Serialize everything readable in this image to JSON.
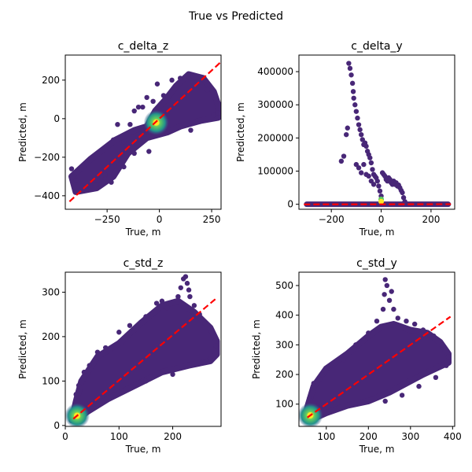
{
  "figure": {
    "suptitle": "True vs Predicted"
  },
  "colors": {
    "point": "#482777",
    "point_dense": "#3b528b",
    "core_inner": "#fde725",
    "core_mid": "#5ec962",
    "core_outer": "#21918c",
    "ideal_line": "#ff0000",
    "axis": "#000000"
  },
  "chart_data": [
    {
      "id": "c_delta_z",
      "type": "scatter",
      "title": "c_delta_z",
      "xlabel": "True, m",
      "ylabel": "Predicted, m",
      "xlim": [
        -450,
        295
      ],
      "ylim": [
        -470,
        330
      ],
      "xticks": [
        -250,
        0,
        250
      ],
      "yticks": [
        -400,
        -200,
        0,
        200
      ],
      "ideal_line": {
        "from": [
          -430,
          -430
        ],
        "to": [
          290,
          290
        ],
        "style": "dashed"
      },
      "density_peak": [
        -15,
        -20
      ],
      "cloud_polygon": [
        [
          -420,
          -300
        ],
        [
          -330,
          -210
        ],
        [
          -210,
          -110
        ],
        [
          -120,
          -60
        ],
        [
          -60,
          -40
        ],
        [
          -20,
          40
        ],
        [
          30,
          100
        ],
        [
          80,
          170
        ],
        [
          140,
          230
        ],
        [
          210,
          210
        ],
        [
          260,
          140
        ],
        [
          285,
          60
        ],
        [
          280,
          5
        ],
        [
          200,
          -10
        ],
        [
          100,
          -40
        ],
        [
          40,
          -70
        ],
        [
          -60,
          -100
        ],
        [
          -150,
          -180
        ],
        [
          -220,
          -300
        ],
        [
          -300,
          -360
        ],
        [
          -400,
          -380
        ]
      ],
      "points": [
        [
          -420,
          -260
        ],
        [
          -400,
          -320
        ],
        [
          -330,
          -350
        ],
        [
          -300,
          -340
        ],
        [
          -280,
          -300
        ],
        [
          -260,
          -290
        ],
        [
          -230,
          -330
        ],
        [
          -220,
          -110
        ],
        [
          -200,
          -30
        ],
        [
          -170,
          -120
        ],
        [
          -140,
          -30
        ],
        [
          -120,
          40
        ],
        [
          -100,
          60
        ],
        [
          -80,
          60
        ],
        [
          -60,
          110
        ],
        [
          -50,
          -170
        ],
        [
          -30,
          90
        ],
        [
          -10,
          180
        ],
        [
          20,
          120
        ],
        [
          60,
          200
        ],
        [
          100,
          210
        ],
        [
          140,
          220
        ],
        [
          180,
          190
        ],
        [
          230,
          150
        ],
        [
          270,
          100
        ],
        [
          280,
          30
        ],
        [
          260,
          20
        ],
        [
          150,
          -60
        ],
        [
          -120,
          -180
        ],
        [
          -170,
          -250
        ]
      ]
    },
    {
      "id": "c_delta_y",
      "type": "scatter",
      "title": "c_delta_y",
      "xlabel": "True, m",
      "ylabel": "Predicted, m",
      "xlim": [
        -330,
        295
      ],
      "ylim": [
        -15000,
        450000
      ],
      "xticks": [
        -200,
        0,
        200
      ],
      "yticks": [
        0,
        100000,
        200000,
        300000,
        400000
      ],
      "ideal_line": {
        "from": [
          -310,
          -310
        ],
        "to": [
          280,
          280
        ],
        "style": "dashed"
      },
      "baseline_range": [
        -310,
        280
      ],
      "highlight_points": [
        [
          0,
          15000
        ],
        [
          0,
          8000
        ]
      ],
      "points": [
        [
          -130,
          425000
        ],
        [
          -125,
          410000
        ],
        [
          -120,
          390000
        ],
        [
          -115,
          365000
        ],
        [
          -112,
          340000
        ],
        [
          -110,
          320000
        ],
        [
          -105,
          300000
        ],
        [
          -100,
          280000
        ],
        [
          -95,
          260000
        ],
        [
          -90,
          240000
        ],
        [
          -85,
          225000
        ],
        [
          -80,
          210000
        ],
        [
          -75,
          195000
        ],
        [
          -70,
          180000
        ],
        [
          -65,
          185000
        ],
        [
          -60,
          175000
        ],
        [
          -55,
          160000
        ],
        [
          -50,
          150000
        ],
        [
          -45,
          140000
        ],
        [
          -40,
          125000
        ],
        [
          -35,
          105000
        ],
        [
          -30,
          90000
        ],
        [
          -25,
          85000
        ],
        [
          -20,
          80000
        ],
        [
          -15,
          70000
        ],
        [
          -10,
          55000
        ],
        [
          -5,
          40000
        ],
        [
          0,
          25000
        ],
        [
          5,
          95000
        ],
        [
          10,
          90000
        ],
        [
          15,
          85000
        ],
        [
          20,
          75000
        ],
        [
          25,
          70000
        ],
        [
          30,
          80000
        ],
        [
          35,
          75000
        ],
        [
          40,
          65000
        ],
        [
          45,
          60000
        ],
        [
          50,
          70000
        ],
        [
          55,
          60000
        ],
        [
          60,
          65000
        ],
        [
          65,
          55000
        ],
        [
          70,
          58000
        ],
        [
          75,
          50000
        ],
        [
          80,
          42000
        ],
        [
          85,
          35000
        ],
        [
          90,
          20000
        ],
        [
          95,
          8000
        ],
        [
          -160,
          130000
        ],
        [
          -150,
          145000
        ],
        [
          -140,
          210000
        ],
        [
          -135,
          230000
        ],
        [
          -100,
          120000
        ],
        [
          -90,
          110000
        ],
        [
          -80,
          95000
        ],
        [
          -70,
          120000
        ],
        [
          -60,
          90000
        ],
        [
          -50,
          85000
        ],
        [
          -40,
          70000
        ],
        [
          -30,
          60000
        ]
      ]
    },
    {
      "id": "c_std_z",
      "type": "scatter",
      "title": "c_std_z",
      "xlabel": "True, m",
      "ylabel": "Predicted, m",
      "xlim": [
        0,
        290
      ],
      "ylim": [
        -2,
        345
      ],
      "xticks": [
        0,
        100,
        200
      ],
      "yticks": [
        0,
        100,
        200,
        300
      ],
      "ideal_line": {
        "from": [
          15,
          15
        ],
        "to": [
          280,
          285
        ],
        "style": "dashed"
      },
      "density_peak": [
        22,
        22
      ],
      "cloud_polygon": [
        [
          12,
          12
        ],
        [
          20,
          55
        ],
        [
          30,
          100
        ],
        [
          60,
          155
        ],
        [
          100,
          185
        ],
        [
          140,
          230
        ],
        [
          180,
          270
        ],
        [
          210,
          280
        ],
        [
          240,
          255
        ],
        [
          270,
          220
        ],
        [
          282,
          190
        ],
        [
          282,
          160
        ],
        [
          270,
          145
        ],
        [
          230,
          135
        ],
        [
          180,
          120
        ],
        [
          130,
          90
        ],
        [
          80,
          60
        ],
        [
          40,
          30
        ],
        [
          20,
          10
        ]
      ],
      "points": [
        [
          20,
          70
        ],
        [
          25,
          90
        ],
        [
          35,
          120
        ],
        [
          45,
          135
        ],
        [
          60,
          165
        ],
        [
          75,
          175
        ],
        [
          100,
          210
        ],
        [
          120,
          225
        ],
        [
          150,
          245
        ],
        [
          170,
          275
        ],
        [
          180,
          280
        ],
        [
          190,
          265
        ],
        [
          210,
          290
        ],
        [
          215,
          310
        ],
        [
          220,
          330
        ],
        [
          224,
          335
        ],
        [
          227,
          320
        ],
        [
          230,
          305
        ],
        [
          232,
          290
        ],
        [
          240,
          270
        ],
        [
          250,
          250
        ],
        [
          260,
          230
        ],
        [
          275,
          200
        ],
        [
          280,
          180
        ],
        [
          270,
          150
        ],
        [
          200,
          115
        ],
        [
          150,
          100
        ]
      ]
    },
    {
      "id": "c_std_y",
      "type": "scatter",
      "title": "c_std_y",
      "xlabel": "True, m",
      "ylabel": "Predicted, m",
      "xlim": [
        35,
        405
      ],
      "ylim": [
        25,
        545
      ],
      "xticks": [
        100,
        200,
        300,
        400
      ],
      "yticks": [
        100,
        200,
        300,
        400,
        500
      ],
      "ideal_line": {
        "from": [
          55,
          55
        ],
        "to": [
          395,
          395
        ],
        "style": "dashed"
      },
      "density_peak": [
        62,
        62
      ],
      "cloud_polygon": [
        [
          50,
          50
        ],
        [
          55,
          90
        ],
        [
          70,
          160
        ],
        [
          100,
          220
        ],
        [
          150,
          270
        ],
        [
          200,
          330
        ],
        [
          230,
          360
        ],
        [
          260,
          370
        ],
        [
          300,
          350
        ],
        [
          340,
          340
        ],
        [
          370,
          310
        ],
        [
          390,
          270
        ],
        [
          390,
          240
        ],
        [
          360,
          220
        ],
        [
          330,
          200
        ],
        [
          290,
          170
        ],
        [
          250,
          140
        ],
        [
          200,
          110
        ],
        [
          150,
          95
        ],
        [
          100,
          70
        ],
        [
          65,
          48
        ]
      ],
      "points": [
        [
          60,
          120
        ],
        [
          70,
          170
        ],
        [
          90,
          200
        ],
        [
          110,
          230
        ],
        [
          140,
          250
        ],
        [
          170,
          300
        ],
        [
          200,
          340
        ],
        [
          220,
          380
        ],
        [
          235,
          420
        ],
        [
          238,
          470
        ],
        [
          240,
          520
        ],
        [
          244,
          500
        ],
        [
          250,
          450
        ],
        [
          255,
          480
        ],
        [
          260,
          420
        ],
        [
          270,
          390
        ],
        [
          290,
          380
        ],
        [
          310,
          370
        ],
        [
          330,
          350
        ],
        [
          355,
          330
        ],
        [
          375,
          300
        ],
        [
          390,
          260
        ],
        [
          385,
          230
        ],
        [
          360,
          190
        ],
        [
          320,
          160
        ],
        [
          280,
          130
        ],
        [
          240,
          110
        ]
      ]
    }
  ]
}
